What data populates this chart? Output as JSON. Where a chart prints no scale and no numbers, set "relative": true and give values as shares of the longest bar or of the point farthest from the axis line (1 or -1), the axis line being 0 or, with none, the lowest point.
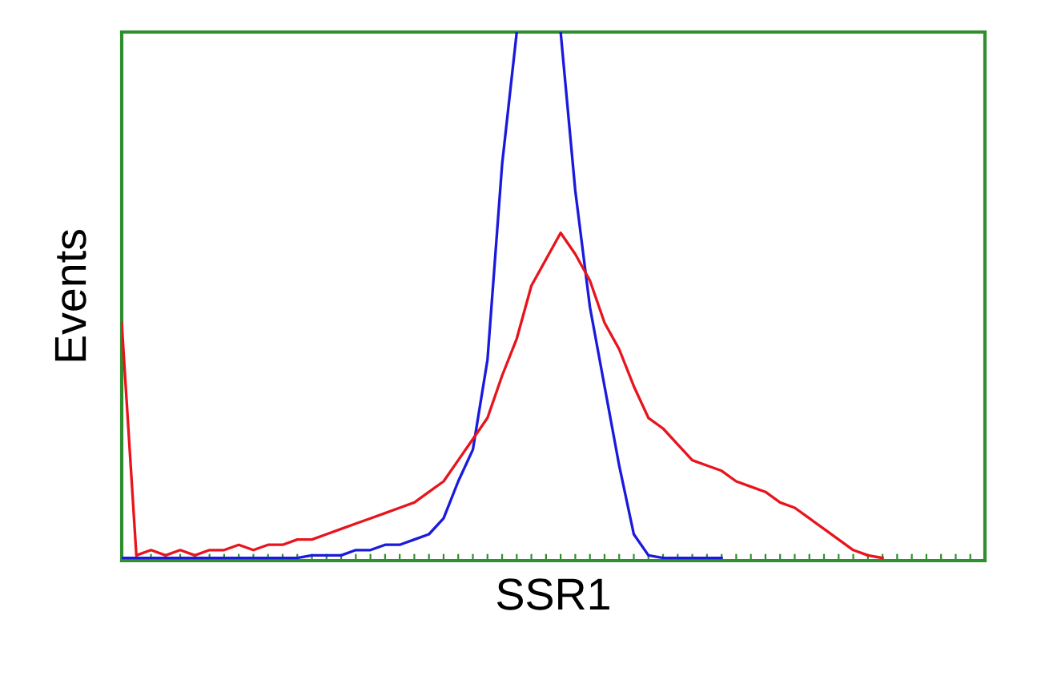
{
  "chart_data": {
    "type": "line",
    "relative": true,
    "xlabel": "SSR1",
    "ylabel": "Events",
    "grid": false,
    "legend": false,
    "marker": "none",
    "line_style": "solid",
    "categories": [
      null,
      null,
      null,
      null,
      null,
      null,
      null,
      null,
      null,
      null,
      null,
      null,
      null,
      null,
      null,
      null,
      null,
      null,
      null,
      null,
      null,
      null,
      null,
      null,
      null,
      null,
      null,
      null,
      null,
      null,
      null,
      null,
      null,
      null,
      null,
      null,
      null,
      null,
      null,
      null,
      null,
      null,
      null,
      null,
      null,
      null,
      null,
      null,
      null,
      null,
      null,
      null,
      null,
      null,
      null,
      null,
      null,
      null,
      null,
      null
    ],
    "series": [
      {
        "color": "#1a1adc",
        "values": [
          0.005,
          0.005,
          0.005,
          0.005,
          0.005,
          0.005,
          0.005,
          0.005,
          0.005,
          0.005,
          0.005,
          0.005,
          0.005,
          0.01,
          0.01,
          0.01,
          0.02,
          0.02,
          0.03,
          0.03,
          0.04,
          0.05,
          0.08,
          0.15,
          0.21,
          0.38,
          0.75,
          1.0,
          null,
          null,
          1.0,
          0.7,
          0.48,
          0.33,
          0.18,
          0.05,
          0.01,
          0.005,
          0.005,
          0.005,
          0.005,
          0.005,
          null,
          null,
          null,
          null,
          null,
          null,
          null,
          null,
          null,
          null,
          null,
          null,
          null,
          null,
          null,
          null,
          null,
          null
        ]
      },
      {
        "color": "#e8141c",
        "values": [
          0.45,
          0.01,
          0.02,
          0.01,
          0.02,
          0.01,
          0.02,
          0.02,
          0.03,
          0.02,
          0.03,
          0.03,
          0.04,
          0.04,
          0.05,
          0.06,
          0.07,
          0.08,
          0.09,
          0.1,
          0.11,
          0.13,
          0.15,
          0.19,
          0.23,
          0.27,
          0.35,
          0.42,
          0.52,
          0.57,
          0.62,
          0.58,
          0.53,
          0.45,
          0.4,
          0.33,
          0.27,
          0.25,
          0.22,
          0.19,
          0.18,
          0.17,
          0.15,
          0.14,
          0.13,
          0.11,
          0.1,
          0.08,
          0.06,
          0.04,
          0.02,
          0.01,
          0.005,
          null,
          null,
          null,
          null,
          null,
          null,
          null
        ]
      }
    ]
  }
}
